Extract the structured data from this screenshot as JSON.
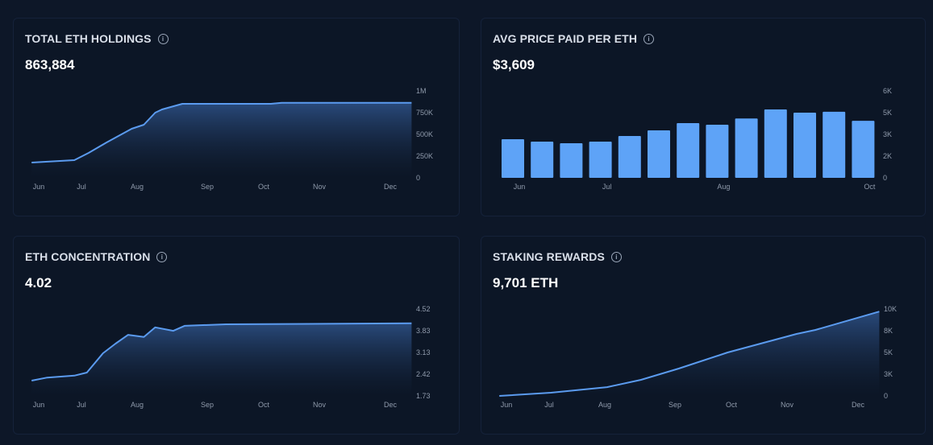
{
  "colors": {
    "background": "#0d1728",
    "card": "#0c1626",
    "line": "#5b9bef",
    "bar": "#5ea3f7",
    "area_top": "#2b4d80"
  },
  "cards": [
    {
      "title": "TOTAL ETH HOLDINGS",
      "value": "863,884",
      "info_icon": "info-circle-icon"
    },
    {
      "title": "AVG PRICE PAID PER ETH",
      "value": "$3,609",
      "info_icon": "info-circle-icon"
    },
    {
      "title": "ETH CONCENTRATION",
      "value": "4.02",
      "info_icon": "info-circle-icon"
    },
    {
      "title": "STAKING REWARDS",
      "value": "9,701 ETH",
      "info_icon": "info-circle-icon"
    }
  ],
  "chart_data": [
    {
      "type": "area",
      "x_ticks": [
        {
          "label": "Jun",
          "date": "06-01"
        },
        {
          "label": "Jul",
          "date": "07-01"
        },
        {
          "label": "Aug",
          "date": "08-01"
        },
        {
          "label": "Sep",
          "date": "09-01"
        },
        {
          "label": "Oct",
          "date": "10-01"
        },
        {
          "label": "Nov",
          "date": "11-01"
        },
        {
          "label": "Dec",
          "date": "12-01"
        }
      ],
      "y_ticks": [
        {
          "label": "0",
          "value": 0
        },
        {
          "label": "250K",
          "value": 250000
        },
        {
          "label": "500K",
          "value": 500000
        },
        {
          "label": "750K",
          "value": 750000
        },
        {
          "label": "1M",
          "value": 1000000
        }
      ],
      "ylim": [
        0,
        1000000
      ],
      "y_axis": "right",
      "points": [
        [
          "05-27",
          176000
        ],
        [
          "06-26",
          204000
        ],
        [
          "07-05",
          287000
        ],
        [
          "07-15",
          407000
        ],
        [
          "07-29",
          565000
        ],
        [
          "08-04",
          611000
        ],
        [
          "08-09",
          750000
        ],
        [
          "08-12",
          787000
        ],
        [
          "08-21",
          852000
        ],
        [
          "10-05",
          852000
        ],
        [
          "10-11",
          864000
        ],
        [
          "12-10",
          864000
        ]
      ]
    },
    {
      "type": "bar",
      "categories": [
        "Jun",
        "",
        "",
        "Jul",
        "",
        "",
        "",
        "Aug",
        "",
        "",
        "",
        "",
        "Oct"
      ],
      "values": [
        2670,
        2500,
        2390,
        2500,
        2890,
        3280,
        3780,
        3670,
        4100,
        4720,
        4500,
        4560,
        3940
      ],
      "y_ticks": [
        {
          "label": "0",
          "value": 0
        },
        {
          "label": "2K",
          "value": 1500
        },
        {
          "label": "3K",
          "value": 3000
        },
        {
          "label": "5K",
          "value": 4500
        },
        {
          "label": "6K",
          "value": 6000
        }
      ],
      "ylim": [
        0,
        6000
      ],
      "y_axis": "right"
    },
    {
      "type": "area",
      "x_ticks": [
        {
          "label": "Jun",
          "date": "06-01"
        },
        {
          "label": "Jul",
          "date": "07-01"
        },
        {
          "label": "Aug",
          "date": "08-01"
        },
        {
          "label": "Sep",
          "date": "09-01"
        },
        {
          "label": "Oct",
          "date": "10-01"
        },
        {
          "label": "Nov",
          "date": "11-01"
        },
        {
          "label": "Dec",
          "date": "12-01"
        }
      ],
      "y_ticks": [
        {
          "label": "1.73",
          "value": 1.73
        },
        {
          "label": "2.42",
          "value": 2.43
        },
        {
          "label": "3.13",
          "value": 3.13
        },
        {
          "label": "3.83",
          "value": 3.82
        },
        {
          "label": "4.52",
          "value": 4.52
        }
      ],
      "ylim": [
        1.73,
        4.52
      ],
      "y_axis": "right",
      "points": [
        [
          "05-27",
          2.22
        ],
        [
          "06-07",
          2.32
        ],
        [
          "06-26",
          2.38
        ],
        [
          "07-04",
          2.48
        ],
        [
          "07-13",
          3.1
        ],
        [
          "07-20",
          3.41
        ],
        [
          "07-27",
          3.69
        ],
        [
          "08-04",
          3.62
        ],
        [
          "08-09",
          3.93
        ],
        [
          "08-17",
          3.82
        ],
        [
          "08-22",
          3.98
        ],
        [
          "09-11",
          4.03
        ],
        [
          "12-10",
          4.06
        ]
      ]
    },
    {
      "type": "area",
      "x_ticks": [
        {
          "label": "Jun",
          "date": "06-01"
        },
        {
          "label": "Jul",
          "date": "07-01"
        },
        {
          "label": "Aug",
          "date": "08-01"
        },
        {
          "label": "Sep",
          "date": "09-01"
        },
        {
          "label": "Oct",
          "date": "10-01"
        },
        {
          "label": "Nov",
          "date": "11-01"
        },
        {
          "label": "Dec",
          "date": "12-01"
        }
      ],
      "y_ticks": [
        {
          "label": "0",
          "value": 0
        },
        {
          "label": "3K",
          "value": 2500
        },
        {
          "label": "5K",
          "value": 5000
        },
        {
          "label": "8K",
          "value": 7500
        },
        {
          "label": "10K",
          "value": 10000
        }
      ],
      "ylim": [
        0,
        10000
      ],
      "y_axis": "right",
      "points": [
        [
          "05-27",
          0
        ],
        [
          "07-02",
          370
        ],
        [
          "08-02",
          1010
        ],
        [
          "08-17",
          1850
        ],
        [
          "09-03",
          3150
        ],
        [
          "09-29",
          5000
        ],
        [
          "11-05",
          7130
        ],
        [
          "11-13",
          7590
        ],
        [
          "12-10",
          9701
        ]
      ]
    }
  ]
}
